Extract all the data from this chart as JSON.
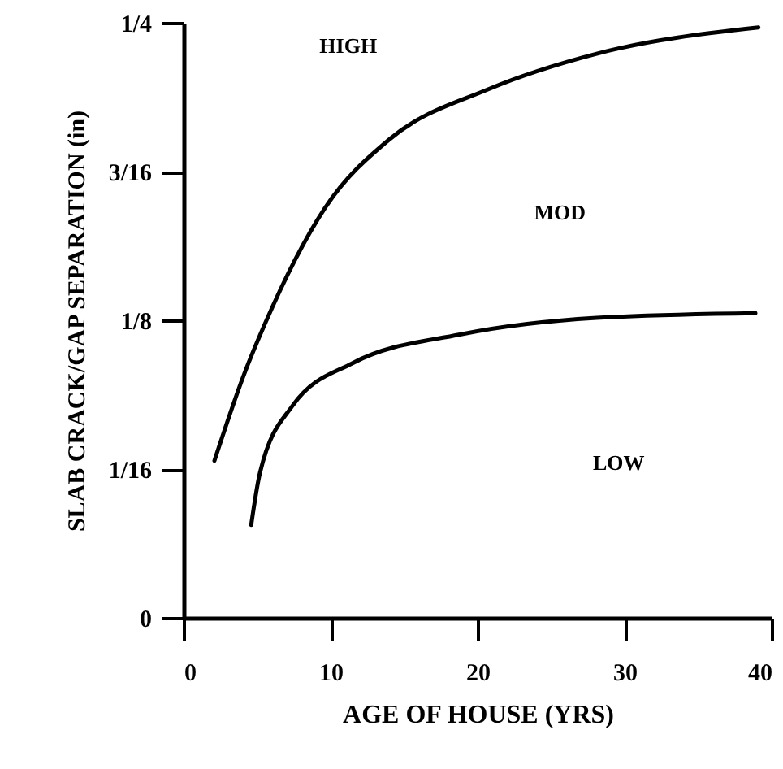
{
  "chart_data": {
    "type": "line",
    "xlabel": "AGE OF HOUSE (YRS)",
    "ylabel": "SLAB CRACK/GAP SEPARATION (in)",
    "xlim": [
      0,
      40
    ],
    "xticks": [
      0,
      10,
      20,
      30,
      40
    ],
    "ylim": [
      0,
      0.25
    ],
    "yticks": [
      {
        "value": 0,
        "label": "0"
      },
      {
        "value": 0.0625,
        "label": "1/16"
      },
      {
        "value": 0.125,
        "label": "1/8"
      },
      {
        "value": 0.1875,
        "label": "3/16"
      },
      {
        "value": 0.25,
        "label": "1/4"
      }
    ],
    "grid": false,
    "marker": "none",
    "line_style": "solid",
    "series": [
      {
        "color": "#000000",
        "x": [
          2.1,
          4.1,
          5.5,
          9.6,
          14.0,
          20.7,
          28.1,
          39.1
        ],
        "values": [
          0.066,
          0.102,
          0.123,
          0.172,
          0.201,
          0.222,
          0.237,
          0.248
        ]
      },
      {
        "color": "#000000",
        "x": [
          4.6,
          5.2,
          7.4,
          11.5,
          18.8,
          28.1,
          38.9
        ],
        "values": [
          0.039,
          0.061,
          0.089,
          0.107,
          0.119,
          0.126,
          0.128
        ]
      }
    ],
    "annotations": [
      "HIGH",
      "MOD",
      "LOW"
    ]
  }
}
